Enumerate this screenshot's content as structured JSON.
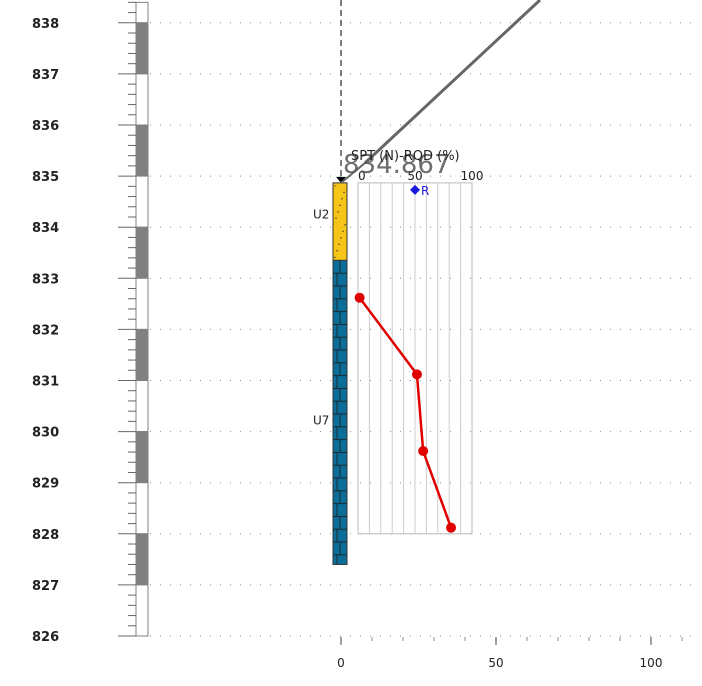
{
  "chart_data": {
    "type": "line",
    "title": "SPT (N)-RQD (%)",
    "y_ticks": [
      "838",
      "837",
      "836",
      "835",
      "834",
      "833",
      "832",
      "831",
      "830",
      "829",
      "828",
      "827",
      "826"
    ],
    "ylim": [
      826,
      838.4
    ],
    "x_ticks": [
      "0",
      "50",
      "100"
    ],
    "xlim": [
      0,
      115
    ],
    "grid": true,
    "borehole": {
      "top_elevation_label": "834.867",
      "top": 834.867,
      "bottom": 827.4,
      "layers": [
        {
          "name": "U2",
          "top": 834.867,
          "bottom": 833.35,
          "color": "#f5c518"
        },
        {
          "name": "U7",
          "top": 833.35,
          "bottom": 827.4,
          "color": "#0a6e99"
        }
      ]
    },
    "inset": {
      "ticks": [
        "0",
        "50",
        "100"
      ],
      "xlim": [
        0,
        100
      ],
      "marker": {
        "label": "R",
        "x": 50,
        "color": "#1a1adb"
      }
    },
    "series": [
      {
        "color": "#e00000",
        "points": [
          {
            "x": 6,
            "y": 832.62
          },
          {
            "x": 24.5,
            "y": 831.12
          },
          {
            "x": 26.5,
            "y": 829.62
          },
          {
            "x": 35.5,
            "y": 828.12
          }
        ]
      }
    ]
  }
}
